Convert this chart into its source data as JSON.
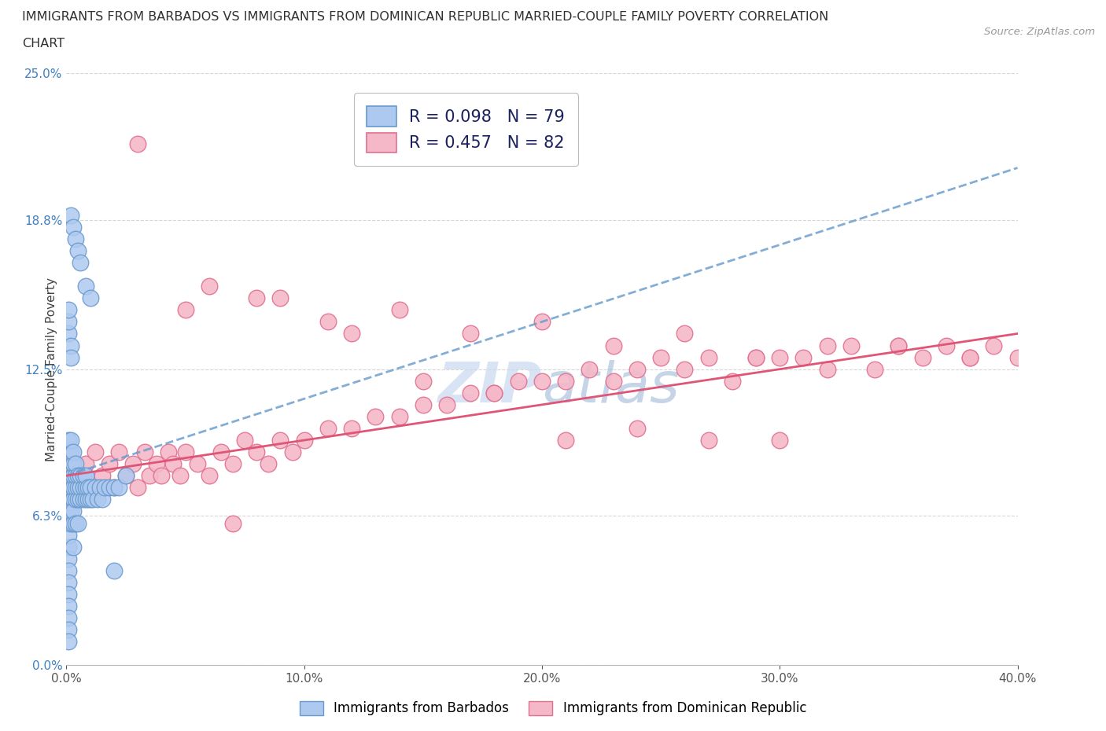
{
  "title_line1": "IMMIGRANTS FROM BARBADOS VS IMMIGRANTS FROM DOMINICAN REPUBLIC MARRIED-COUPLE FAMILY POVERTY CORRELATION",
  "title_line2": "CHART",
  "source": "Source: ZipAtlas.com",
  "ylabel": "Married-Couple Family Poverty",
  "xlim": [
    0,
    0.4
  ],
  "ylim": [
    0,
    0.25
  ],
  "xticks": [
    0.0,
    0.1,
    0.2,
    0.3,
    0.4
  ],
  "xticklabels": [
    "0.0%",
    "10.0%",
    "20.0%",
    "30.0%",
    "40.0%"
  ],
  "ytick_positions": [
    0.0,
    0.063,
    0.125,
    0.188,
    0.25
  ],
  "ytick_labels": [
    "0.0%",
    "6.3%",
    "12.5%",
    "18.8%",
    "25.0%"
  ],
  "barbados_color": "#aec9f0",
  "barbados_edge": "#6699cc",
  "dominican_color": "#f5b8c8",
  "dominican_edge": "#e07090",
  "barbados_R": 0.098,
  "barbados_N": 79,
  "dominican_R": 0.457,
  "dominican_N": 82,
  "watermark_text": "ZIPAtlas",
  "watermark_color": "#c8d8f0",
  "grid_color": "#cccccc",
  "background_color": "#ffffff",
  "title_color": "#303030",
  "title_fontsize": 11.5,
  "barbados_trend_color": "#6699cc",
  "barbados_trend_style": "--",
  "dominican_trend_color": "#e05575",
  "dominican_trend_style": "-",
  "legend_text_color": "#1a2060",
  "yticklabel_color": "#4080c0",
  "barbados_scatter_x": [
    0.001,
    0.001,
    0.001,
    0.001,
    0.001,
    0.001,
    0.001,
    0.001,
    0.001,
    0.001,
    0.001,
    0.001,
    0.001,
    0.001,
    0.001,
    0.001,
    0.001,
    0.001,
    0.002,
    0.002,
    0.002,
    0.002,
    0.002,
    0.002,
    0.002,
    0.002,
    0.003,
    0.003,
    0.003,
    0.003,
    0.003,
    0.003,
    0.003,
    0.004,
    0.004,
    0.004,
    0.004,
    0.004,
    0.005,
    0.005,
    0.005,
    0.005,
    0.006,
    0.006,
    0.006,
    0.007,
    0.007,
    0.007,
    0.008,
    0.008,
    0.008,
    0.009,
    0.009,
    0.01,
    0.01,
    0.011,
    0.012,
    0.013,
    0.014,
    0.015,
    0.016,
    0.018,
    0.02,
    0.022,
    0.025,
    0.002,
    0.003,
    0.004,
    0.005,
    0.006,
    0.008,
    0.01,
    0.001,
    0.001,
    0.001,
    0.002,
    0.002,
    0.003,
    0.02
  ],
  "barbados_scatter_y": [
    0.07,
    0.075,
    0.08,
    0.085,
    0.09,
    0.095,
    0.06,
    0.065,
    0.05,
    0.055,
    0.045,
    0.04,
    0.035,
    0.03,
    0.025,
    0.02,
    0.015,
    0.01,
    0.07,
    0.075,
    0.08,
    0.085,
    0.09,
    0.095,
    0.06,
    0.065,
    0.07,
    0.075,
    0.08,
    0.085,
    0.06,
    0.065,
    0.09,
    0.07,
    0.075,
    0.08,
    0.06,
    0.085,
    0.07,
    0.075,
    0.08,
    0.06,
    0.07,
    0.075,
    0.08,
    0.07,
    0.075,
    0.08,
    0.07,
    0.075,
    0.08,
    0.07,
    0.075,
    0.07,
    0.075,
    0.07,
    0.075,
    0.07,
    0.075,
    0.07,
    0.075,
    0.075,
    0.075,
    0.075,
    0.08,
    0.19,
    0.185,
    0.18,
    0.175,
    0.17,
    0.16,
    0.155,
    0.14,
    0.145,
    0.15,
    0.135,
    0.13,
    0.05,
    0.04
  ],
  "dominican_scatter_x": [
    0.005,
    0.008,
    0.01,
    0.012,
    0.015,
    0.018,
    0.02,
    0.022,
    0.025,
    0.028,
    0.03,
    0.033,
    0.035,
    0.038,
    0.04,
    0.043,
    0.045,
    0.048,
    0.05,
    0.055,
    0.06,
    0.065,
    0.07,
    0.075,
    0.08,
    0.085,
    0.09,
    0.095,
    0.1,
    0.11,
    0.12,
    0.13,
    0.14,
    0.15,
    0.16,
    0.17,
    0.18,
    0.19,
    0.2,
    0.21,
    0.22,
    0.23,
    0.24,
    0.25,
    0.26,
    0.27,
    0.28,
    0.29,
    0.3,
    0.31,
    0.32,
    0.33,
    0.34,
    0.35,
    0.36,
    0.37,
    0.38,
    0.39,
    0.4,
    0.05,
    0.08,
    0.11,
    0.14,
    0.17,
    0.2,
    0.23,
    0.26,
    0.29,
    0.32,
    0.35,
    0.38,
    0.06,
    0.09,
    0.12,
    0.15,
    0.18,
    0.21,
    0.24,
    0.27,
    0.3,
    0.03,
    0.07
  ],
  "dominican_scatter_y": [
    0.08,
    0.085,
    0.075,
    0.09,
    0.08,
    0.085,
    0.075,
    0.09,
    0.08,
    0.085,
    0.075,
    0.09,
    0.08,
    0.085,
    0.08,
    0.09,
    0.085,
    0.08,
    0.09,
    0.085,
    0.08,
    0.09,
    0.085,
    0.095,
    0.09,
    0.085,
    0.095,
    0.09,
    0.095,
    0.1,
    0.1,
    0.105,
    0.105,
    0.11,
    0.11,
    0.115,
    0.115,
    0.12,
    0.12,
    0.12,
    0.125,
    0.12,
    0.125,
    0.13,
    0.125,
    0.13,
    0.12,
    0.13,
    0.13,
    0.13,
    0.125,
    0.135,
    0.125,
    0.135,
    0.13,
    0.135,
    0.13,
    0.135,
    0.13,
    0.15,
    0.155,
    0.145,
    0.15,
    0.14,
    0.145,
    0.135,
    0.14,
    0.13,
    0.135,
    0.135,
    0.13,
    0.16,
    0.155,
    0.14,
    0.12,
    0.115,
    0.095,
    0.1,
    0.095,
    0.095,
    0.22,
    0.06
  ]
}
